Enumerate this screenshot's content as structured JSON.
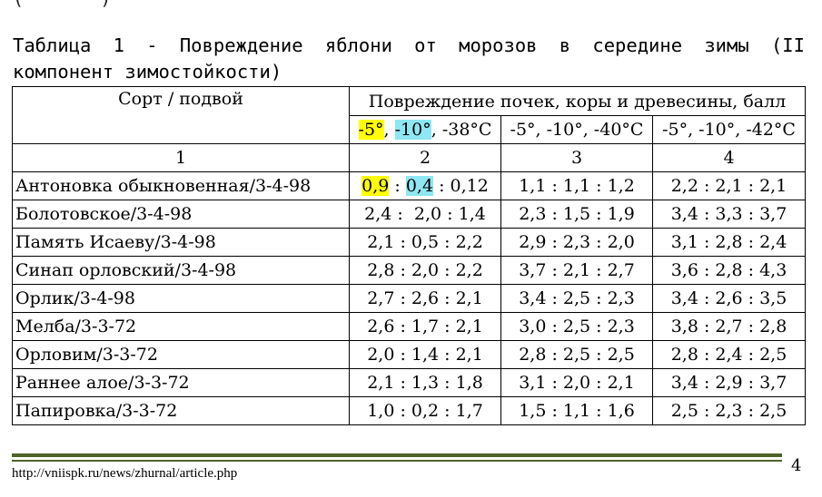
{
  "top_fragment": "(·······)",
  "caption": "Таблица 1 - Повреждение яблони от морозов в середине зимы (II компонент зимостойкости)",
  "table": {
    "header_sort": "Сорт / подвой",
    "header_damage": "Повреждение почек, коры и древесины, балл",
    "temp_col2": {
      "t1": "-5°",
      "sep1": ", ",
      "t2": "-10°",
      "rest": ", -38°C"
    },
    "temp_col3": "-5°, -10°, -40°C",
    "temp_col4": "-5°, -10°, -42°C",
    "col_numbers": [
      "1",
      "2",
      "3",
      "4"
    ],
    "first_row": {
      "variety": "Антоновка обыкновенная/3-4-98",
      "c2_a": "0,9",
      "c2_sep1": " : ",
      "c2_b": "0,4",
      "c2_rest": " : 0,12",
      "c3": "1,1 : 1,1 : 1,2",
      "c4": "2,2 : 2,1 : 2,1"
    },
    "rows": [
      {
        "variety": "Болотовское/3-4-98",
        "c2": "2,4 :  2,0 : 1,4",
        "c3": "2,3 : 1,5 : 1,9",
        "c4": "3,4 : 3,3 : 3,7"
      },
      {
        "variety": "Память Исаеву/3-4-98",
        "c2": "2,1 : 0,5 : 2,2",
        "c3": "2,9 : 2,3 : 2,0",
        "c4": "3,1 : 2,8 : 2,4"
      },
      {
        "variety": "Синап орловский/3-4-98",
        "c2": "2,8 : 2,0 : 2,2",
        "c3": "3,7 : 2,1 : 2,7",
        "c4": "3,6 : 2,8 : 4,3"
      },
      {
        "variety": "Орлик/3-4-98",
        "c2": "2,7 : 2,6 : 2,1",
        "c3": "3,4 : 2,5 : 2,3",
        "c4": "3,4 : 2,6 : 3,5"
      },
      {
        "variety": "Мелба/3-3-72",
        "c2": "2,6 : 1,7 : 2,1",
        "c3": "3,0 : 2,5 : 2,3",
        "c4": "3,8 : 2,7 : 2,8"
      },
      {
        "variety": "Орловим/3-3-72",
        "c2": "2,0 : 1,4 : 2,1",
        "c3": "2,8 : 2,5 : 2,5",
        "c4": "2,8 : 2,4 : 2,5"
      },
      {
        "variety": "Раннее алое/3-3-72",
        "c2": "2,1 : 1,3 : 1,8",
        "c3": "3,1 : 2,0 : 2,1",
        "c4": "3,4 : 2,9 : 3,7"
      },
      {
        "variety": "Папировка/3-3-72",
        "c2": "1,0 : 0,2 : 1,7",
        "c3": "1,5 : 1,1 : 1,6",
        "c4": "2,5 : 2,3 : 2,5"
      }
    ]
  },
  "highlight_colors": {
    "yellow": "#ffff00",
    "cyan": "#8ee7f2"
  },
  "rule_color": "#4f6228",
  "footer": {
    "url": "http://vniispk.ru/news/zhurnal/article.php",
    "page_number": "4"
  }
}
